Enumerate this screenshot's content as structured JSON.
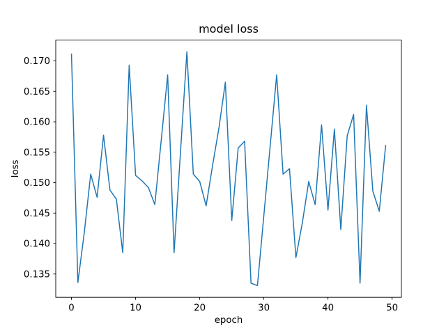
{
  "figure": {
    "title": "model loss",
    "xlabel": "epoch",
    "ylabel": "loss"
  },
  "colors": {
    "line": "#1f77b4",
    "axis": "#000000",
    "background": "#ffffff"
  },
  "chart_data": {
    "type": "line",
    "title": "model loss",
    "xlabel": "epoch",
    "ylabel": "loss",
    "grid": false,
    "legend": false,
    "xlim": [
      -2.45,
      51.45
    ],
    "ylim": [
      0.13118,
      0.17342
    ],
    "x_tick_labels": [
      "0",
      "10",
      "20",
      "30",
      "40",
      "50"
    ],
    "x_tick_values": [
      0,
      10,
      20,
      30,
      40,
      50
    ],
    "y_tick_labels": [
      "0.135",
      "0.140",
      "0.145",
      "0.150",
      "0.155",
      "0.160",
      "0.165",
      "0.170"
    ],
    "y_tick_values": [
      0.135,
      0.14,
      0.145,
      0.15,
      0.155,
      0.16,
      0.165,
      0.17
    ],
    "series": [
      {
        "name": "loss",
        "color": "#1f77b4",
        "x": [
          0,
          1,
          2,
          3,
          4,
          5,
          6,
          7,
          8,
          9,
          10,
          11,
          12,
          13,
          14,
          15,
          16,
          17,
          18,
          19,
          20,
          21,
          22,
          23,
          24,
          25,
          26,
          27,
          28,
          29,
          30,
          31,
          32,
          33,
          34,
          35,
          36,
          37,
          38,
          39,
          40,
          41,
          42,
          43,
          44,
          45,
          46,
          47,
          48,
          49
        ],
        "values": [
          0.1712,
          0.1336,
          0.1418,
          0.1514,
          0.1476,
          0.1578,
          0.1488,
          0.1473,
          0.1385,
          0.1693,
          0.1512,
          0.1503,
          0.1492,
          0.1464,
          0.157,
          0.1677,
          0.1385,
          0.155,
          0.1715,
          0.1514,
          0.1502,
          0.1462,
          0.1528,
          0.159,
          0.1665,
          0.1438,
          0.1557,
          0.1568,
          0.1335,
          0.1331,
          0.1446,
          0.1562,
          0.1677,
          0.1514,
          0.1523,
          0.1377,
          0.1434,
          0.1502,
          0.1464,
          0.1595,
          0.1455,
          0.1588,
          0.1423,
          0.1577,
          0.1612,
          0.1335,
          0.1627,
          0.1486,
          0.1453,
          0.1562
        ]
      }
    ]
  }
}
